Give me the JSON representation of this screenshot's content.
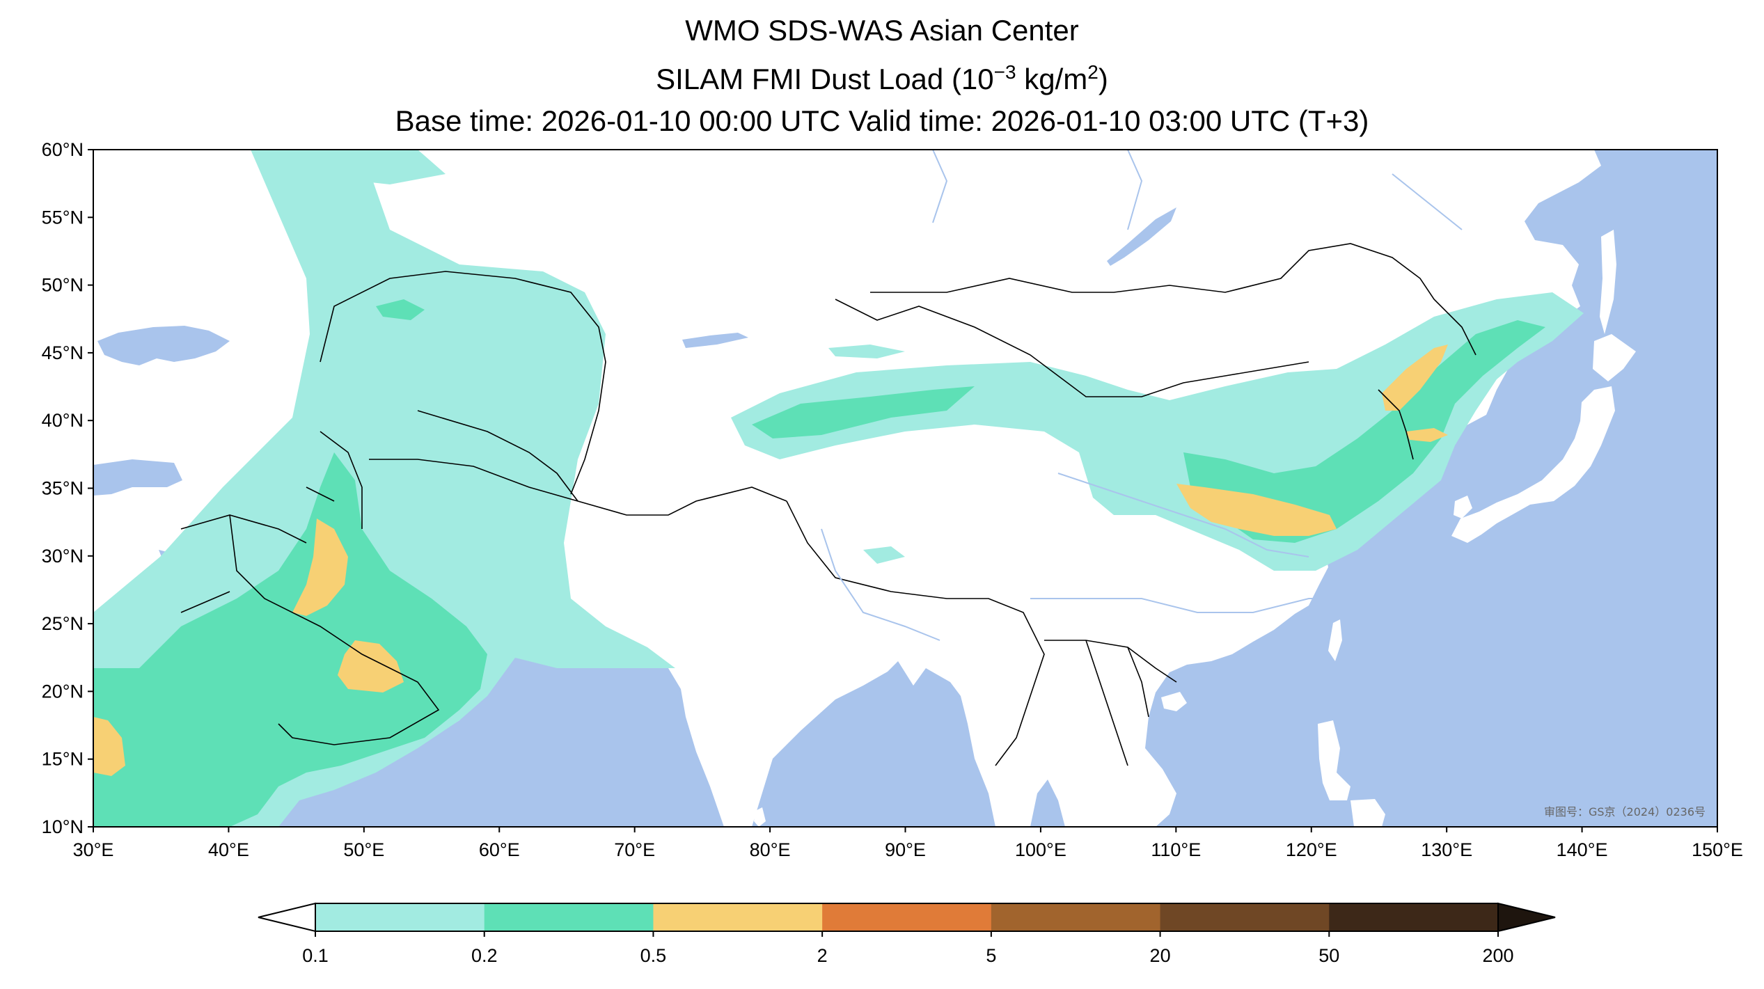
{
  "header": {
    "title_line1": "WMO SDS-WAS Asian Center",
    "title_line2_prefix": "SILAM FMI Dust Load (10",
    "title_line2_exp": "−3",
    "title_line2_mid": " kg/m",
    "title_line2_sup": "2",
    "title_line2_suffix": ")",
    "title_line3": "Base time: 2026-01-10 00:00 UTC Valid time: 2026-01-10 03:00 UTC (T+3)"
  },
  "map": {
    "lon_range": [
      30,
      150
    ],
    "lat_range": [
      10,
      60
    ],
    "lat_ticks": [
      "60°N",
      "55°N",
      "50°N",
      "45°N",
      "40°N",
      "35°N",
      "30°N",
      "25°N",
      "20°N",
      "15°N",
      "10°N"
    ],
    "lon_ticks": [
      "30°E",
      "40°E",
      "50°E",
      "60°E",
      "70°E",
      "80°E",
      "90°E",
      "100°E",
      "110°E",
      "120°E",
      "130°E",
      "140°E",
      "150°E"
    ],
    "approval_text": "审图号：GS京（2024）0236号",
    "colors": {
      "ocean": "#a9c4ec",
      "land": "#ffffff",
      "border": "#000000",
      "river": "#a9c4ec"
    }
  },
  "colorbar": {
    "labels": [
      "0.1",
      "0.2",
      "0.5",
      "2",
      "5",
      "20",
      "50",
      "200"
    ],
    "colors": [
      "#a2ebe1",
      "#5ee0b6",
      "#f7d074",
      "#e07b38",
      "#a1642d",
      "#6f4725",
      "#3d2818"
    ],
    "under_color": "#ffffff",
    "over_color": "#1e150e"
  }
}
